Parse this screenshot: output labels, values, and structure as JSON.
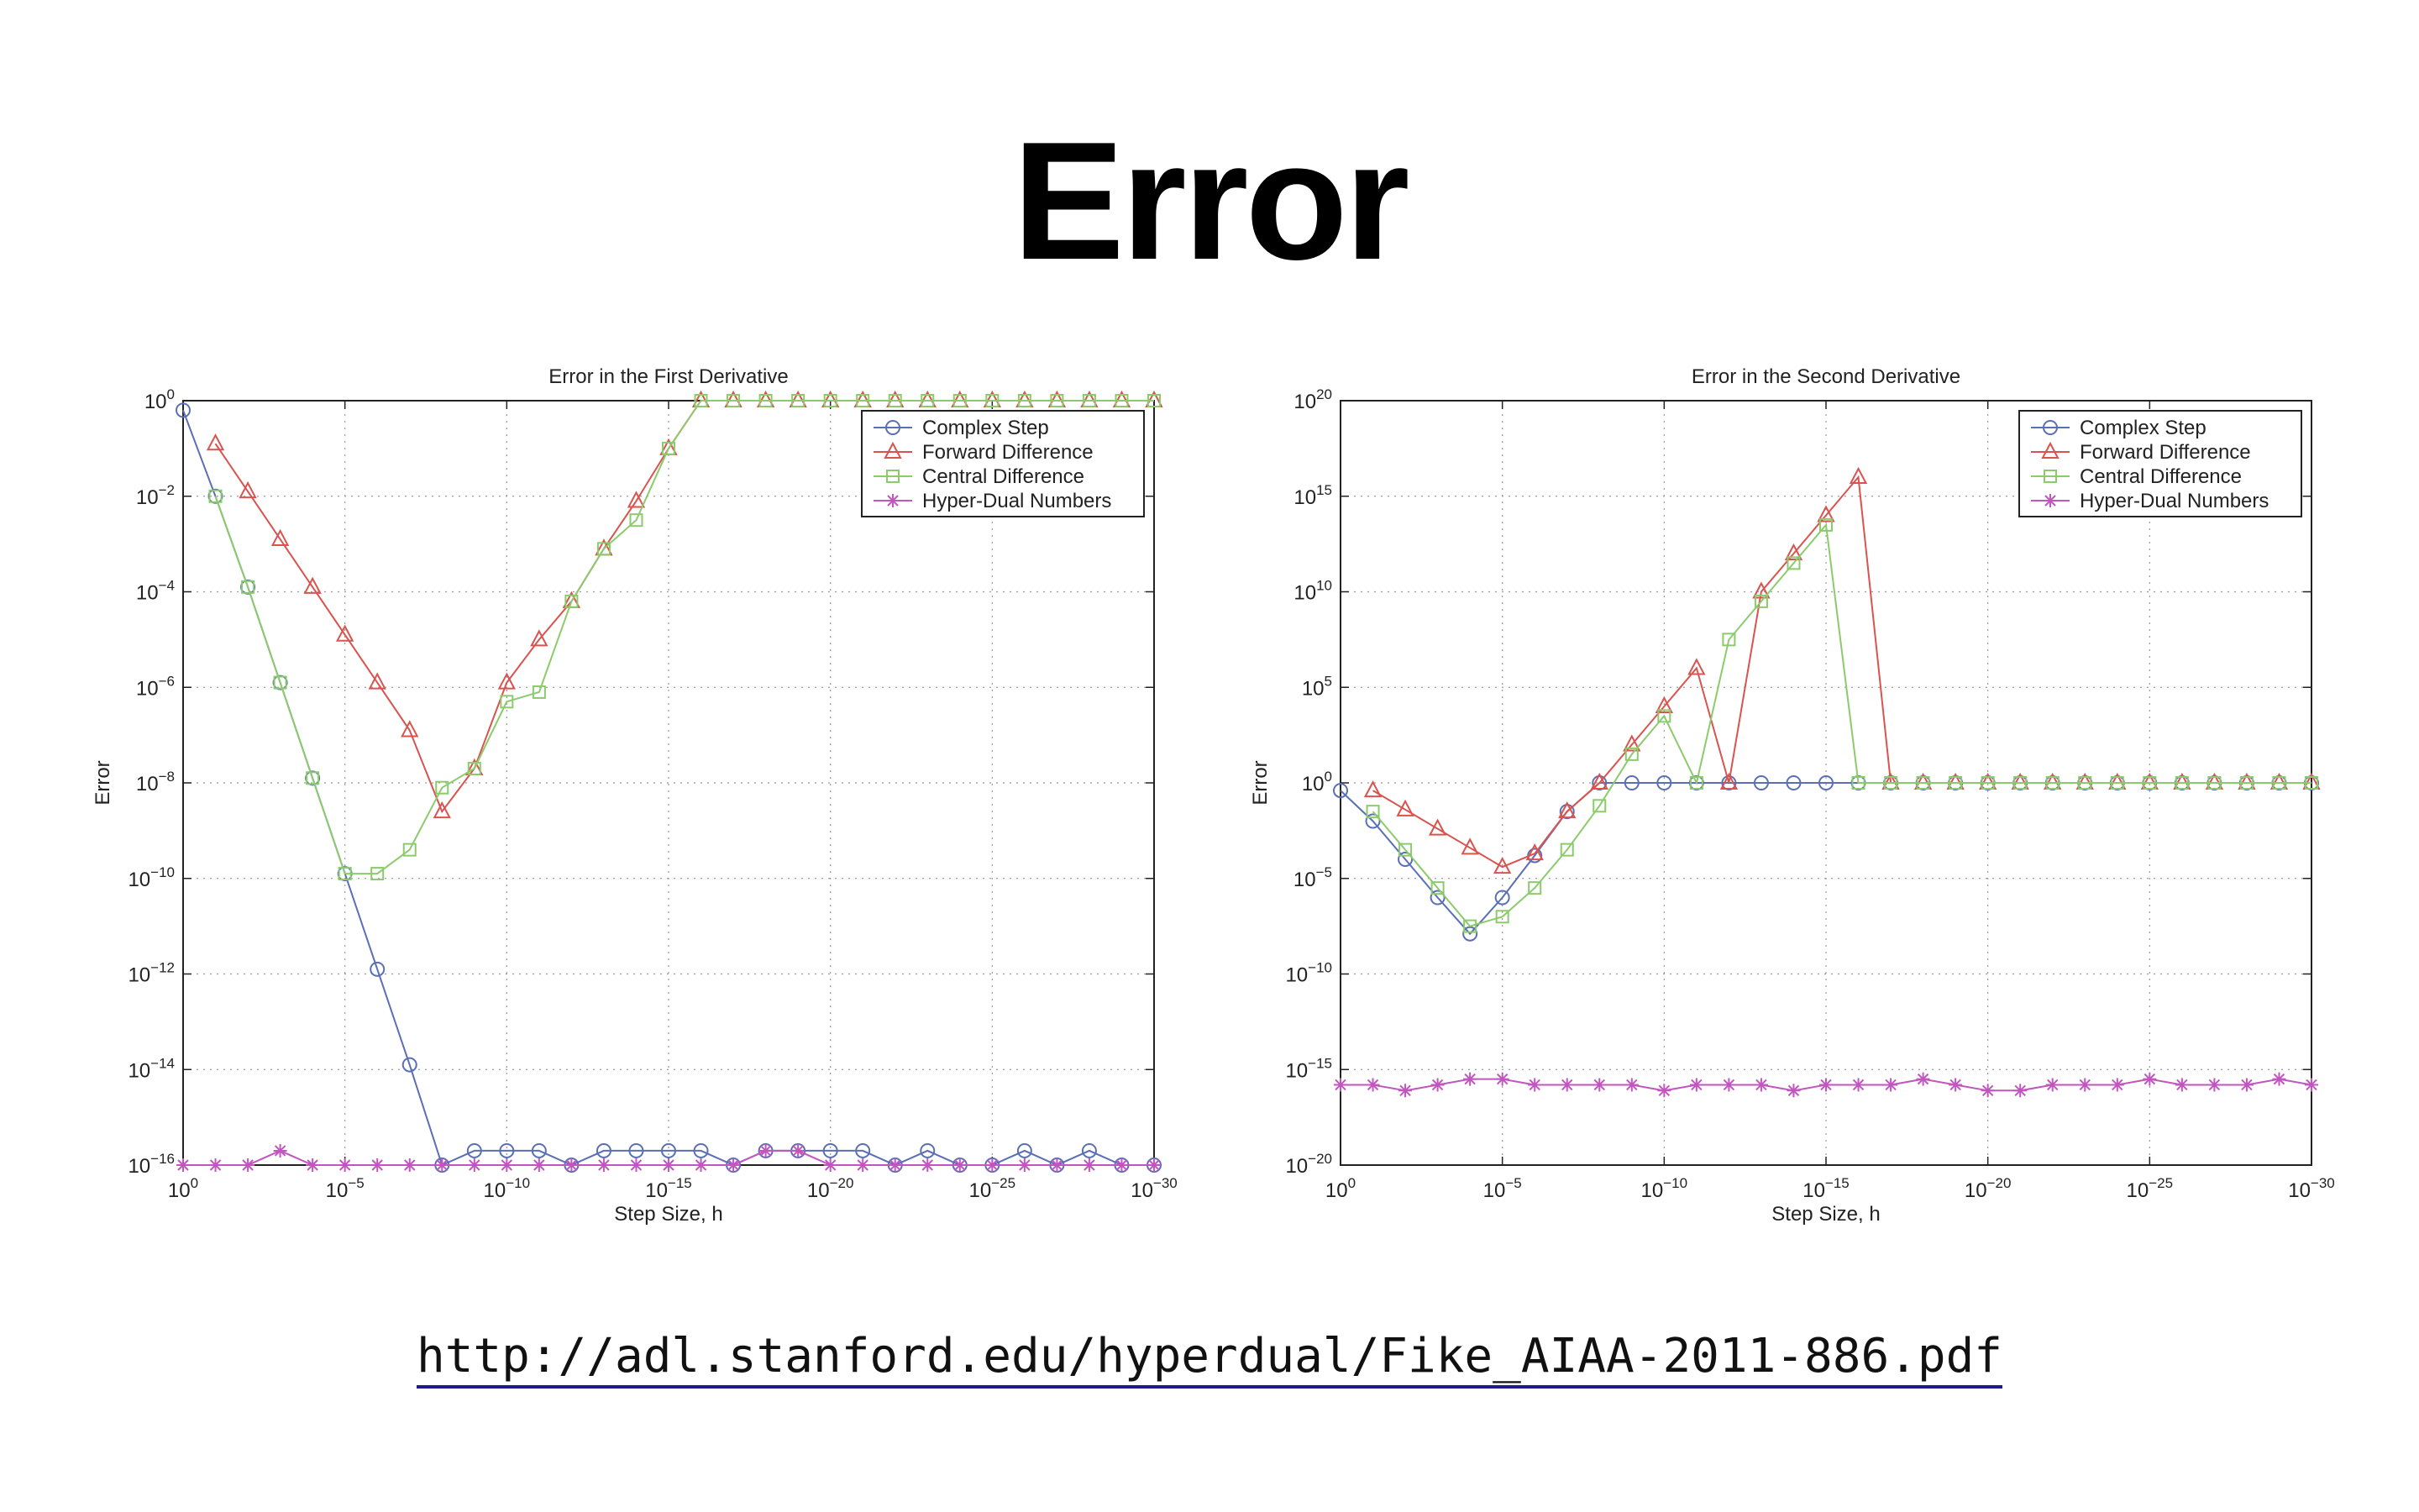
{
  "slide": {
    "title": "Error",
    "link_text": "http://adl.stanford.edu/hyperdual/Fike_AIAA-2011-886.pdf"
  },
  "chart_data": [
    {
      "type": "line",
      "title": "Error in the First Derivative",
      "xlabel": "Step Size, h",
      "ylabel": "Error",
      "x_scale": "log-reversed",
      "y_scale": "log",
      "xlim_exponent": [
        0,
        -30
      ],
      "ylim_exponent": [
        -16,
        0
      ],
      "x_ticks_exponent": [
        0,
        -5,
        -10,
        -15,
        -20,
        -25,
        -30
      ],
      "y_ticks_exponent": [
        0,
        -2,
        -4,
        -6,
        -8,
        -10,
        -12,
        -14,
        -16
      ],
      "grid": true,
      "legend_position": "top-right",
      "x_exponent": [
        0,
        -1,
        -2,
        -3,
        -4,
        -5,
        -6,
        -7,
        -8,
        -9,
        -10,
        -11,
        -12,
        -13,
        -14,
        -15,
        -16,
        -17,
        -18,
        -19,
        -20,
        -21,
        -22,
        -23,
        -24,
        -25,
        -26,
        -27,
        -28,
        -29,
        -30
      ],
      "series": [
        {
          "name": "Complex Step",
          "color": "#5a6fb5",
          "marker": "circle",
          "y_exponent": [
            -0.2,
            -2,
            -3.9,
            -5.9,
            -7.9,
            -9.9,
            -11.9,
            -13.9,
            -16,
            -15.7,
            -15.7,
            -15.7,
            -16,
            -15.7,
            -15.7,
            -15.7,
            -15.7,
            -16,
            -15.7,
            -15.7,
            -15.7,
            -15.7,
            -16,
            -15.7,
            -16,
            -16,
            -15.7,
            -16,
            -15.7,
            -16,
            -16
          ]
        },
        {
          "name": "Forward Difference",
          "color": "#d9534f",
          "marker": "triangle",
          "y_exponent": [
            null,
            -0.9,
            -1.9,
            -2.9,
            -3.9,
            -4.9,
            -5.9,
            -6.9,
            -8.6,
            -7.7,
            -5.9,
            -5,
            -4.2,
            -3.1,
            -2.1,
            -1,
            0,
            0,
            0,
            0,
            0,
            0,
            0,
            0,
            0,
            0,
            0,
            0,
            0,
            0,
            0
          ]
        },
        {
          "name": "Central Difference",
          "color": "#8ccb6c",
          "marker": "square",
          "y_exponent": [
            null,
            -2,
            -3.9,
            -5.9,
            -7.9,
            -9.9,
            -9.9,
            -9.4,
            -8.1,
            -7.7,
            -6.3,
            -6.1,
            -4.2,
            -3.1,
            -2.5,
            -1,
            0,
            0,
            0,
            0,
            0,
            0,
            0,
            0,
            0,
            0,
            0,
            0,
            0,
            0,
            0
          ]
        },
        {
          "name": "Hyper-Dual Numbers",
          "color": "#c156bf",
          "marker": "asterisk",
          "y_exponent": [
            -16,
            -16,
            -16,
            -15.7,
            -16,
            -16,
            -16,
            -16,
            -16,
            -16,
            -16,
            -16,
            -16,
            -16,
            -16,
            -16,
            -16,
            -16,
            -15.7,
            -15.7,
            -16,
            -16,
            -16,
            -16,
            -16,
            -16,
            -16,
            -16,
            -16,
            -16,
            -16
          ]
        }
      ]
    },
    {
      "type": "line",
      "title": "Error in the Second Derivative",
      "xlabel": "Step Size, h",
      "ylabel": "Error",
      "x_scale": "log-reversed",
      "y_scale": "log",
      "xlim_exponent": [
        0,
        -30
      ],
      "ylim_exponent": [
        -20,
        20
      ],
      "x_ticks_exponent": [
        0,
        -5,
        -10,
        -15,
        -20,
        -25,
        -30
      ],
      "y_ticks_exponent": [
        20,
        15,
        10,
        5,
        0,
        -5,
        -10,
        -15,
        -20
      ],
      "grid": true,
      "legend_position": "top-right",
      "x_exponent": [
        0,
        -1,
        -2,
        -3,
        -4,
        -5,
        -6,
        -7,
        -8,
        -9,
        -10,
        -11,
        -12,
        -13,
        -14,
        -15,
        -16,
        -17,
        -18,
        -19,
        -20,
        -21,
        -22,
        -23,
        -24,
        -25,
        -26,
        -27,
        -28,
        -29,
        -30
      ],
      "series": [
        {
          "name": "Complex Step",
          "color": "#5a6fb5",
          "marker": "circle",
          "y_exponent": [
            -0.4,
            -2,
            -4,
            -6,
            -7.9,
            -6,
            -3.8,
            -1.5,
            0,
            0,
            0,
            0,
            0,
            0,
            0,
            0,
            0,
            0,
            0,
            0,
            0,
            0,
            0,
            0,
            0,
            0,
            0,
            0,
            0,
            0,
            0
          ]
        },
        {
          "name": "Forward Difference",
          "color": "#d9534f",
          "marker": "triangle",
          "y_exponent": [
            null,
            -0.4,
            -1.4,
            -2.4,
            -3.4,
            -4.4,
            -3.7,
            -1.5,
            0,
            2,
            4,
            6,
            0,
            10,
            12,
            14,
            16,
            0,
            0,
            0,
            0,
            0,
            0,
            0,
            0,
            0,
            0,
            0,
            0,
            0,
            0
          ]
        },
        {
          "name": "Central Difference",
          "color": "#8ccb6c",
          "marker": "square",
          "y_exponent": [
            null,
            -1.5,
            -3.5,
            -5.5,
            -7.5,
            -7,
            -5.5,
            -3.5,
            -1.2,
            1.5,
            3.5,
            0,
            7.5,
            9.5,
            11.5,
            13.5,
            0,
            0,
            0,
            0,
            0,
            0,
            0,
            0,
            0,
            0,
            0,
            0,
            0,
            0,
            0
          ]
        },
        {
          "name": "Hyper-Dual Numbers",
          "color": "#c156bf",
          "marker": "asterisk",
          "y_exponent": [
            -15.8,
            -15.8,
            -16.1,
            -15.8,
            -15.5,
            -15.5,
            -15.8,
            -15.8,
            -15.8,
            -15.8,
            -16.1,
            -15.8,
            -15.8,
            -15.8,
            -16.1,
            -15.8,
            -15.8,
            -15.8,
            -15.5,
            -15.8,
            -16.1,
            -16.1,
            -15.8,
            -15.8,
            -15.8,
            -15.5,
            -15.8,
            -15.8,
            -15.8,
            -15.5,
            -15.8
          ]
        }
      ]
    }
  ]
}
